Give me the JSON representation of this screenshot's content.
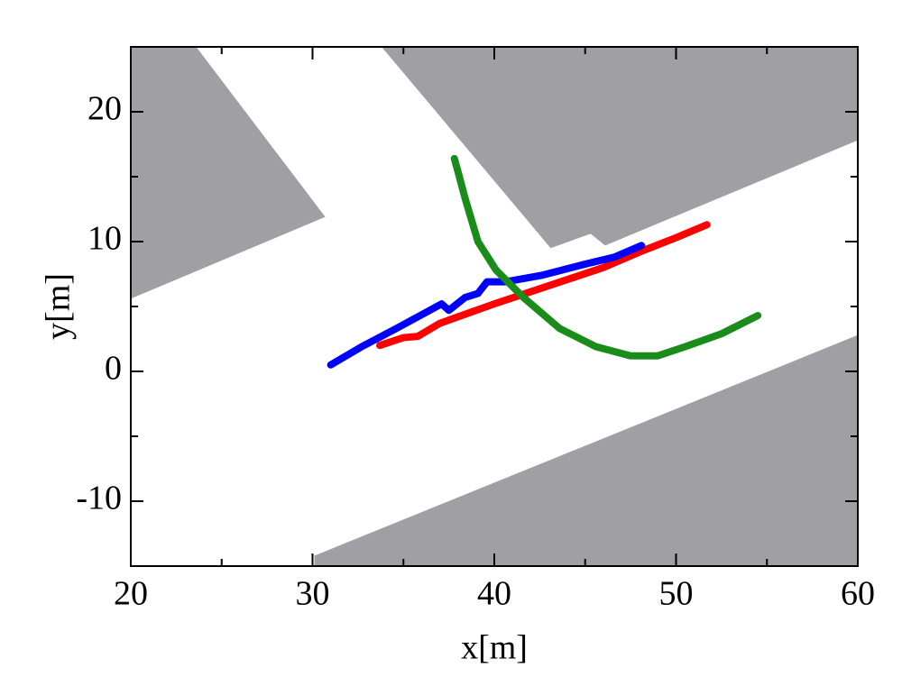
{
  "chart_data": {
    "type": "line",
    "xlabel": "x[m]",
    "ylabel": "y[m]",
    "xlim": [
      20,
      60
    ],
    "ylim": [
      -15,
      25
    ],
    "xticks": [
      20,
      30,
      40,
      50,
      60
    ],
    "yticks": [
      -10,
      0,
      10,
      20
    ],
    "xticks_minor": [
      25,
      35,
      45,
      55
    ],
    "yticks_minor": [
      -5,
      5,
      15
    ],
    "region_color": "#a09fa3",
    "regions": [
      {
        "x": [
          20,
          23.6,
          30.7,
          20
        ],
        "y": [
          25,
          25,
          11.9,
          5.6
        ]
      },
      {
        "x": [
          33.8,
          60,
          60,
          46.1,
          45.3,
          43.1
        ],
        "y": [
          25,
          25,
          17.8,
          9.7,
          10.6,
          9.5
        ]
      },
      {
        "x": [
          30.1,
          60,
          60,
          30.1
        ],
        "y": [
          -14.2,
          2.8,
          -15,
          -15
        ]
      }
    ],
    "series": [
      {
        "color": "#ff0000",
        "x": [
          33.7,
          35.0,
          35.8,
          37,
          40,
          43,
          46,
          48,
          50,
          51.7
        ],
        "values": [
          2.0,
          2.6,
          2.7,
          3.7,
          5.2,
          6.6,
          8.0,
          9.2,
          10.3,
          11.3
        ]
      },
      {
        "color": "#0000ff",
        "x": [
          31.0,
          32.7,
          34.6,
          37.1,
          37.5,
          38.4,
          39.1,
          39.6,
          40.6,
          42.6,
          45.1,
          46.6,
          48.1
        ],
        "values": [
          0.5,
          1.9,
          3.3,
          5.2,
          4.7,
          5.7,
          6.0,
          6.9,
          6.9,
          7.4,
          8.3,
          8.8,
          9.7
        ]
      },
      {
        "color": "#1a8c1a",
        "x": [
          37.8,
          38.0,
          38.4,
          39.1,
          40.1,
          41.6,
          43.6,
          45.6,
          47.5,
          49.0,
          50.5,
          52.5,
          54.5
        ],
        "values": [
          16.4,
          15.4,
          13.3,
          10.0,
          7.8,
          5.7,
          3.3,
          1.9,
          1.2,
          1.2,
          1.9,
          2.9,
          4.3
        ]
      }
    ]
  }
}
